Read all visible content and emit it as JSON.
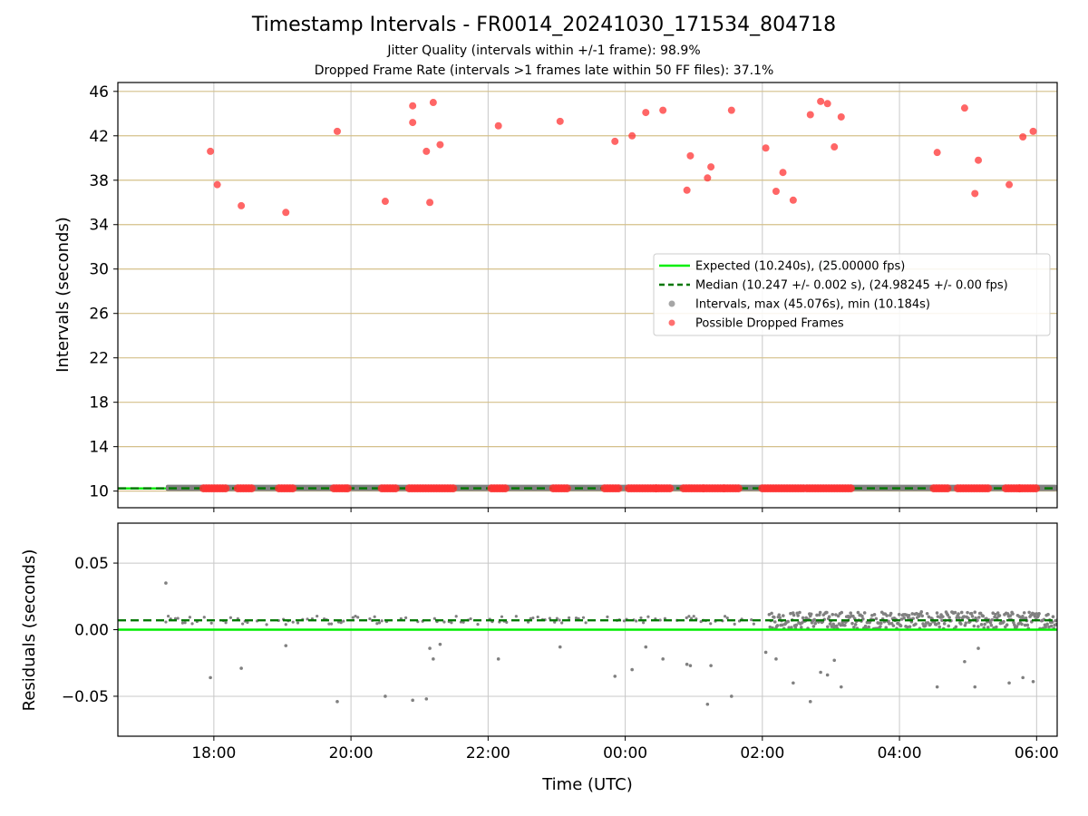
{
  "header": {
    "title": "Timestamp Intervals - FR0014_20241030_171534_804718",
    "subtitle_jitter": "Jitter Quality (intervals within +/-1 frame): 98.9%",
    "subtitle_dropped": "Dropped Frame Rate (intervals >1 frames late within 50 FF files): 37.1%"
  },
  "chart_data": [
    {
      "type": "scatter",
      "panel": "intervals",
      "ylabel": "Intervals (seconds)",
      "xlabel": "",
      "x_unit": "hours since 00:00 UTC",
      "xlim": [
        -7.4,
        6.3
      ],
      "ylim": [
        8.5,
        46.8
      ],
      "y_ticks": [
        "10",
        "14",
        "18",
        "22",
        "26",
        "30",
        "34",
        "38",
        "42",
        "46"
      ],
      "grid": true,
      "legend_position": "center-right",
      "colors": {
        "expected": "#00ee00",
        "median": "#007700",
        "intervals": "#808080",
        "dropped": "#ff3333",
        "hgrid": "#d4c08a",
        "vgrid": "#c8c8c8"
      },
      "series": [
        {
          "name": "Expected (10.240s), (25.00000 fps)",
          "kind": "hline",
          "y": 10.24
        },
        {
          "name": "Median (10.247 +/- 0.002 s), (24.98245 +/- 0.00 fps)",
          "kind": "hline-dashed",
          "y": 10.247
        },
        {
          "name": "Intervals, max (45.076s), min (10.184s)",
          "kind": "band",
          "y": 10.247,
          "x_range": [
            -6.7,
            6.3
          ]
        },
        {
          "name": "Possible Dropped Frames",
          "kind": "points",
          "high_points": [
            [
              -6.05,
              40.6
            ],
            [
              -5.95,
              37.6
            ],
            [
              -5.6,
              35.7
            ],
            [
              -4.95,
              35.1
            ],
            [
              -4.2,
              42.4
            ],
            [
              -3.5,
              36.1
            ],
            [
              -3.1,
              44.7
            ],
            [
              -3.1,
              43.2
            ],
            [
              -2.9,
              40.6
            ],
            [
              -2.85,
              36.0
            ],
            [
              -2.8,
              45.0
            ],
            [
              -2.7,
              41.2
            ],
            [
              -1.85,
              42.9
            ],
            [
              -0.95,
              43.3
            ],
            [
              -0.15,
              41.5
            ],
            [
              0.1,
              42.0
            ],
            [
              0.3,
              44.1
            ],
            [
              0.55,
              44.3
            ],
            [
              0.9,
              37.1
            ],
            [
              0.95,
              40.2
            ],
            [
              1.2,
              38.2
            ],
            [
              1.25,
              39.2
            ],
            [
              1.55,
              44.3
            ],
            [
              2.05,
              40.9
            ],
            [
              2.2,
              37.0
            ],
            [
              2.3,
              38.7
            ],
            [
              2.45,
              36.2
            ],
            [
              2.7,
              43.9
            ],
            [
              2.85,
              45.1
            ],
            [
              2.95,
              44.9
            ],
            [
              3.05,
              41.0
            ],
            [
              3.15,
              43.7
            ],
            [
              4.55,
              40.5
            ],
            [
              4.95,
              44.5
            ],
            [
              5.1,
              36.8
            ],
            [
              5.15,
              39.8
            ],
            [
              5.6,
              37.6
            ],
            [
              5.8,
              41.9
            ],
            [
              5.95,
              42.4
            ]
          ],
          "baseline_clusters": [
            [
              -6.15,
              -5.8
            ],
            [
              -5.65,
              -5.45
            ],
            [
              -5.05,
              -4.85
            ],
            [
              -4.25,
              -4.05
            ],
            [
              -3.55,
              -3.35
            ],
            [
              -3.15,
              -2.5
            ],
            [
              -1.95,
              -1.75
            ],
            [
              -1.05,
              -0.85
            ],
            [
              -0.3,
              -0.1
            ],
            [
              0.05,
              0.45
            ],
            [
              0.45,
              0.65
            ],
            [
              0.85,
              1.15
            ],
            [
              1.15,
              1.45
            ],
            [
              1.45,
              1.65
            ],
            [
              2.0,
              2.6
            ],
            [
              2.65,
              3.3
            ],
            [
              4.5,
              4.7
            ],
            [
              4.85,
              5.3
            ],
            [
              5.55,
              5.75
            ],
            [
              5.75,
              6.0
            ]
          ]
        }
      ]
    },
    {
      "type": "scatter",
      "panel": "residuals",
      "ylabel": "Residuals (seconds)",
      "xlabel": "Time (UTC)",
      "x_unit": "hours since 00:00 UTC",
      "xlim": [
        -7.4,
        6.3
      ],
      "ylim": [
        -0.08,
        0.08
      ],
      "x_ticks": [
        {
          "v": -6,
          "label": "18:00"
        },
        {
          "v": -4,
          "label": "20:00"
        },
        {
          "v": -2,
          "label": "22:00"
        },
        {
          "v": 0,
          "label": "00:00"
        },
        {
          "v": 2,
          "label": "02:00"
        },
        {
          "v": 4,
          "label": "04:00"
        },
        {
          "v": 6,
          "label": "06:00"
        }
      ],
      "y_ticks": [
        {
          "v": 0.05,
          "label": "0.05"
        },
        {
          "v": 0.0,
          "label": "0.00"
        },
        {
          "v": -0.05,
          "label": "−0.05"
        }
      ],
      "grid": true,
      "reference_lines": {
        "expected": 0.0,
        "median": 0.007
      },
      "residual_band": {
        "low_density": [
          -6.7,
          2.1
        ],
        "high_density": [
          2.1,
          6.3
        ],
        "center": 0.007,
        "spread": 0.004
      },
      "outliers": [
        [
          -6.7,
          0.035
        ],
        [
          -6.05,
          -0.036
        ],
        [
          -5.6,
          -0.029
        ],
        [
          -4.95,
          -0.012
        ],
        [
          -4.2,
          -0.054
        ],
        [
          -3.5,
          -0.05
        ],
        [
          -3.1,
          -0.053
        ],
        [
          -2.9,
          -0.052
        ],
        [
          -2.85,
          -0.014
        ],
        [
          -2.8,
          -0.022
        ],
        [
          -2.7,
          -0.011
        ],
        [
          -1.85,
          -0.022
        ],
        [
          -0.95,
          -0.013
        ],
        [
          -0.15,
          -0.035
        ],
        [
          0.1,
          -0.03
        ],
        [
          0.3,
          -0.013
        ],
        [
          0.55,
          -0.022
        ],
        [
          0.9,
          -0.026
        ],
        [
          0.95,
          -0.027
        ],
        [
          1.2,
          -0.056
        ],
        [
          1.25,
          -0.027
        ],
        [
          1.55,
          -0.05
        ],
        [
          2.05,
          -0.017
        ],
        [
          2.2,
          -0.022
        ],
        [
          2.45,
          -0.04
        ],
        [
          2.7,
          -0.054
        ],
        [
          2.85,
          -0.032
        ],
        [
          2.95,
          -0.034
        ],
        [
          3.05,
          -0.023
        ],
        [
          3.15,
          -0.043
        ],
        [
          4.55,
          -0.043
        ],
        [
          4.95,
          -0.024
        ],
        [
          5.1,
          -0.043
        ],
        [
          5.15,
          -0.014
        ],
        [
          5.6,
          -0.04
        ],
        [
          5.8,
          -0.036
        ],
        [
          5.95,
          -0.039
        ]
      ]
    }
  ]
}
